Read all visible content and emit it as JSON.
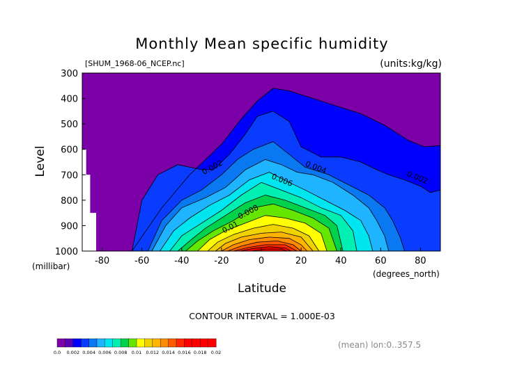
{
  "chart_data": {
    "type": "heatmap",
    "title": "Monthly Mean specific humidity",
    "source_label": "[SHUM_1968-06_NCEP.nc]",
    "units_label": "(units:kg/kg)",
    "xlabel": "Latitude",
    "ylabel": "Level",
    "x_units": "(degrees_north)",
    "y_units": "(millibar)",
    "xlim": [
      -90,
      90
    ],
    "ylim": [
      1000,
      300
    ],
    "x_ticks": [
      -80,
      -60,
      -40,
      -20,
      0,
      20,
      40,
      60,
      80
    ],
    "x_tick_labels": [
      "-80",
      "-60",
      "-40",
      "-20",
      "0",
      "20",
      "40",
      "60",
      "80"
    ],
    "y_ticks": [
      300,
      400,
      500,
      600,
      700,
      800,
      900,
      1000
    ],
    "y_tick_labels": [
      "300",
      "400",
      "500",
      "600",
      "700",
      "800",
      "900",
      "1000"
    ],
    "contour_interval_text": "CONTOUR INTERVAL = 1.000E-03",
    "footer_note": "(mean) lon:0..357.5",
    "contour_labels": [
      {
        "text": "0.002",
        "lat": -24,
        "level": 680
      },
      {
        "text": "0.004",
        "lat": 27,
        "level": 680
      },
      {
        "text": "0.002",
        "lat": 78,
        "level": 720
      },
      {
        "text": "0.006",
        "lat": 10,
        "level": 730
      },
      {
        "text": "0.008",
        "lat": -6,
        "level": 855
      },
      {
        "text": "0.01",
        "lat": -15,
        "level": 915
      }
    ],
    "contours": [
      {
        "value": 0.001,
        "top_level": [
          [
            -65,
            1000
          ],
          [
            -50,
            830
          ],
          [
            -36,
            700
          ],
          [
            -20,
            580
          ],
          [
            -10,
            480
          ],
          [
            -2,
            410
          ],
          [
            6,
            360
          ],
          [
            14,
            370
          ],
          [
            24,
            395
          ],
          [
            30,
            410
          ],
          [
            38,
            430
          ],
          [
            50,
            460
          ],
          [
            62,
            505
          ],
          [
            74,
            565
          ],
          [
            82,
            590
          ],
          [
            90,
            585
          ]
        ]
      },
      {
        "value": 0.002,
        "top_level": [
          [
            -65,
            1000
          ],
          [
            -60,
            800
          ],
          [
            -52,
            700
          ],
          [
            -42,
            660
          ],
          [
            -30,
            680
          ],
          [
            -24,
            680
          ],
          [
            -16,
            620
          ],
          [
            -8,
            540
          ],
          [
            -2,
            470
          ],
          [
            6,
            450
          ],
          [
            14,
            490
          ],
          [
            20,
            590
          ],
          [
            30,
            630
          ],
          [
            40,
            630
          ],
          [
            50,
            650
          ],
          [
            58,
            680
          ],
          [
            64,
            700
          ],
          [
            72,
            720
          ],
          [
            80,
            745
          ],
          [
            85,
            770
          ],
          [
            90,
            760
          ]
        ]
      },
      {
        "value": 0.003,
        "top_level": [
          [
            -57,
            1000
          ],
          [
            -50,
            880
          ],
          [
            -40,
            800
          ],
          [
            -30,
            760
          ],
          [
            -20,
            700
          ],
          [
            -12,
            640
          ],
          [
            -4,
            600
          ],
          [
            6,
            570
          ],
          [
            14,
            620
          ],
          [
            22,
            670
          ],
          [
            34,
            700
          ],
          [
            44,
            740
          ],
          [
            54,
            780
          ],
          [
            62,
            830
          ],
          [
            66,
            880
          ],
          [
            70,
            950
          ],
          [
            72,
            1000
          ]
        ]
      },
      {
        "value": 0.004,
        "top_level": [
          [
            -55,
            1000
          ],
          [
            -48,
            900
          ],
          [
            -40,
            830
          ],
          [
            -28,
            790
          ],
          [
            -18,
            750
          ],
          [
            -8,
            680
          ],
          [
            2,
            640
          ],
          [
            10,
            660
          ],
          [
            18,
            690
          ],
          [
            26,
            700
          ],
          [
            36,
            730
          ],
          [
            46,
            780
          ],
          [
            54,
            830
          ],
          [
            58,
            880
          ],
          [
            62,
            940
          ],
          [
            64,
            1000
          ]
        ]
      },
      {
        "value": 0.005,
        "top_level": [
          [
            -51,
            1000
          ],
          [
            -44,
            920
          ],
          [
            -36,
            870
          ],
          [
            -26,
            820
          ],
          [
            -16,
            780
          ],
          [
            -6,
            720
          ],
          [
            4,
            690
          ],
          [
            14,
            730
          ],
          [
            22,
            760
          ],
          [
            32,
            800
          ],
          [
            42,
            840
          ],
          [
            50,
            880
          ],
          [
            54,
            940
          ],
          [
            56,
            1000
          ]
        ]
      },
      {
        "value": 0.006,
        "top_level": [
          [
            -46,
            1000
          ],
          [
            -40,
            940
          ],
          [
            -30,
            890
          ],
          [
            -20,
            840
          ],
          [
            -10,
            780
          ],
          [
            0,
            730
          ],
          [
            10,
            760
          ],
          [
            20,
            790
          ],
          [
            30,
            830
          ],
          [
            40,
            860
          ],
          [
            46,
            920
          ],
          [
            48,
            1000
          ]
        ]
      },
      {
        "value": 0.007,
        "top_level": [
          [
            -42,
            1000
          ],
          [
            -36,
            960
          ],
          [
            -28,
            910
          ],
          [
            -18,
            860
          ],
          [
            -8,
            810
          ],
          [
            2,
            780
          ],
          [
            12,
            800
          ],
          [
            22,
            830
          ],
          [
            32,
            860
          ],
          [
            38,
            900
          ],
          [
            41,
            1000
          ]
        ]
      },
      {
        "value": 0.008,
        "top_level": [
          [
            -38,
            1000
          ],
          [
            -32,
            960
          ],
          [
            -24,
            920
          ],
          [
            -14,
            880
          ],
          [
            -4,
            830
          ],
          [
            6,
            815
          ],
          [
            16,
            840
          ],
          [
            26,
            870
          ],
          [
            34,
            910
          ],
          [
            38,
            1000
          ]
        ]
      },
      {
        "value": 0.009,
        "top_level": [
          [
            -32,
            1000
          ],
          [
            -26,
            955
          ],
          [
            -18,
            920
          ],
          [
            -8,
            890
          ],
          [
            2,
            860
          ],
          [
            12,
            870
          ],
          [
            22,
            890
          ],
          [
            30,
            930
          ],
          [
            33,
            1000
          ]
        ]
      },
      {
        "value": 0.01,
        "top_level": [
          [
            -27,
            1000
          ],
          [
            -22,
            965
          ],
          [
            -14,
            935
          ],
          [
            -4,
            910
          ],
          [
            6,
            895
          ],
          [
            16,
            910
          ],
          [
            24,
            940
          ],
          [
            29,
            1000
          ]
        ]
      },
      {
        "value": 0.011,
        "top_level": [
          [
            -23,
            1000
          ],
          [
            -18,
            970
          ],
          [
            -10,
            945
          ],
          [
            0,
            930
          ],
          [
            10,
            925
          ],
          [
            20,
            945
          ],
          [
            26,
            1000
          ]
        ]
      },
      {
        "value": 0.012,
        "top_level": [
          [
            -20,
            1000
          ],
          [
            -14,
            975
          ],
          [
            -6,
            955
          ],
          [
            4,
            945
          ],
          [
            14,
            950
          ],
          [
            20,
            975
          ],
          [
            23,
            1000
          ]
        ]
      },
      {
        "value": 0.013,
        "top_level": [
          [
            -17,
            1000
          ],
          [
            -10,
            980
          ],
          [
            -2,
            965
          ],
          [
            8,
            960
          ],
          [
            16,
            975
          ],
          [
            20,
            1000
          ]
        ]
      },
      {
        "value": 0.014,
        "top_level": [
          [
            -14,
            1000
          ],
          [
            -6,
            985
          ],
          [
            2,
            975
          ],
          [
            12,
            975
          ],
          [
            18,
            1000
          ]
        ]
      },
      {
        "value": 0.015,
        "top_level": [
          [
            -11,
            1000
          ],
          [
            -4,
            990
          ],
          [
            4,
            983
          ],
          [
            12,
            988
          ],
          [
            15,
            1000
          ]
        ]
      },
      {
        "value": 0.016,
        "top_level": [
          [
            -5,
            1000
          ],
          [
            2,
            992
          ],
          [
            10,
            992
          ],
          [
            13,
            1000
          ]
        ]
      }
    ],
    "no_data_mask": [
      [
        -90,
        1000
      ],
      [
        -90,
        600
      ],
      [
        -88,
        600
      ],
      [
        -88,
        700
      ],
      [
        -86,
        700
      ],
      [
        -86,
        850
      ],
      [
        -83,
        850
      ],
      [
        -83,
        1000
      ]
    ],
    "colorbar": {
      "boundaries": [
        0.0,
        0.002,
        0.004,
        0.006,
        0.008,
        0.01,
        0.012,
        0.014,
        0.016,
        0.018,
        0.02
      ],
      "tick_labels": [
        "0.0",
        "0.002",
        "0.004",
        "0.006",
        "0.008",
        "0.01",
        "0.012",
        "0.014",
        "0.016",
        "0.018",
        "0.02"
      ],
      "colors": [
        "#7b00a8",
        "#5c00b8",
        "#0000ff",
        "#0a3cff",
        "#0a78f0",
        "#1eb4ff",
        "#00e6f0",
        "#00f0b4",
        "#00d24b",
        "#64e600",
        "#ffff00",
        "#f0d200",
        "#ffb400",
        "#ff8c00",
        "#ff5a00",
        "#ff2800",
        "#ff0000",
        "#ff0000",
        "#ff0000",
        "#ff0000"
      ]
    },
    "colors": {
      "fill_levels": [
        "#7b00a8",
        "#0000ff",
        "#0a3cff",
        "#0a78f0",
        "#1eb4ff",
        "#00e6f0",
        "#00f0b4",
        "#00d24b",
        "#64e600",
        "#ffff00",
        "#f0d200",
        "#ffb400",
        "#ff8c00",
        "#ff5a00",
        "#ff2800",
        "#ff0000"
      ]
    }
  }
}
